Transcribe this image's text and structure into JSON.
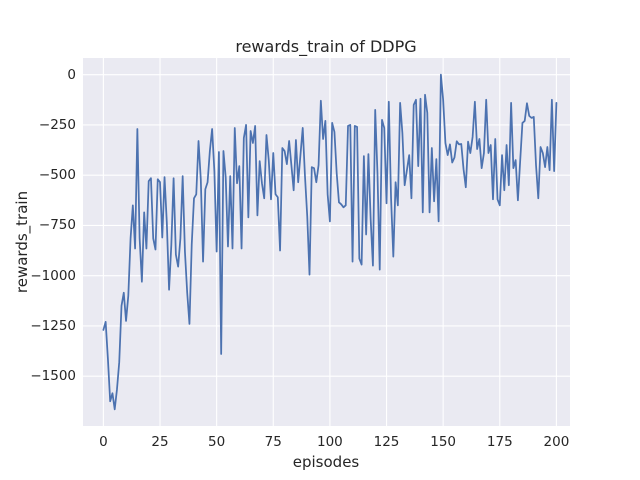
{
  "figure": {
    "background_color": "#ffffff",
    "plot_background_color": "#eaeaf2",
    "grid_color": "#ffffff",
    "text_color": "#262626"
  },
  "chart_data": {
    "type": "line",
    "title": "rewards_train of DDPG",
    "xlabel": "episodes",
    "ylabel": "rewards_train",
    "x_tick_labels": [
      "0",
      "25",
      "50",
      "75",
      "100",
      "125",
      "150",
      "175",
      "200"
    ],
    "x_ticks": [
      0,
      25,
      50,
      75,
      100,
      125,
      150,
      175,
      200
    ],
    "y_tick_labels": [
      "0",
      "−250",
      "−500",
      "−750",
      "−1000",
      "−1250",
      "−1500"
    ],
    "y_ticks": [
      0,
      -250,
      -500,
      -750,
      -1000,
      -1250,
      -1500
    ],
    "xlim": [
      -9,
      206
    ],
    "ylim": [
      -1748,
      83
    ],
    "grid": true,
    "legend": "none",
    "line_color": "#4c72b0",
    "line_width": 1.75,
    "series": [
      {
        "name": "rewards_train",
        "x_start": 0,
        "x_step": 1,
        "y": [
          -1270,
          -1230,
          -1415,
          -1625,
          -1585,
          -1665,
          -1565,
          -1430,
          -1150,
          -1085,
          -1225,
          -1100,
          -815,
          -650,
          -865,
          -270,
          -815,
          -1030,
          -685,
          -865,
          -530,
          -515,
          -815,
          -870,
          -520,
          -535,
          -810,
          -510,
          -735,
          -1070,
          -845,
          -515,
          -895,
          -955,
          -815,
          -505,
          -880,
          -1085,
          -1240,
          -845,
          -615,
          -595,
          -330,
          -520,
          -930,
          -570,
          -535,
          -380,
          -270,
          -480,
          -880,
          -385,
          -1390,
          -380,
          -510,
          -855,
          -505,
          -865,
          -265,
          -540,
          -455,
          -865,
          -315,
          -250,
          -710,
          -280,
          -340,
          -255,
          -700,
          -430,
          -540,
          -615,
          -300,
          -425,
          -620,
          -390,
          -595,
          -610,
          -875,
          -365,
          -380,
          -445,
          -330,
          -450,
          -575,
          -325,
          -535,
          -400,
          -265,
          -505,
          -705,
          -995,
          -460,
          -465,
          -535,
          -450,
          -130,
          -320,
          -230,
          -595,
          -730,
          -240,
          -285,
          -490,
          -635,
          -645,
          -660,
          -650,
          -255,
          -250,
          -930,
          -255,
          -260,
          -915,
          -945,
          -405,
          -795,
          -395,
          -720,
          -950,
          -175,
          -490,
          -970,
          -225,
          -265,
          -640,
          -135,
          -615,
          -905,
          -535,
          -650,
          -140,
          -290,
          -550,
          -475,
          -400,
          -615,
          -150,
          -125,
          -455,
          -120,
          -685,
          -100,
          -190,
          -685,
          -365,
          -630,
          -420,
          -730,
          0,
          -125,
          -340,
          -400,
          -347,
          -437,
          -412,
          -331,
          -347,
          -345,
          -470,
          -560,
          -333,
          -390,
          -310,
          -135,
          -370,
          -320,
          -465,
          -390,
          -125,
          -390,
          -350,
          -620,
          -320,
          -620,
          -650,
          -400,
          -575,
          -350,
          -550,
          -140,
          -465,
          -425,
          -625,
          -430,
          -240,
          -230,
          -142,
          -205,
          -215,
          -210,
          -450,
          -615,
          -360,
          -390,
          -460,
          -360,
          -475,
          -125,
          -480,
          -140
        ]
      }
    ]
  }
}
